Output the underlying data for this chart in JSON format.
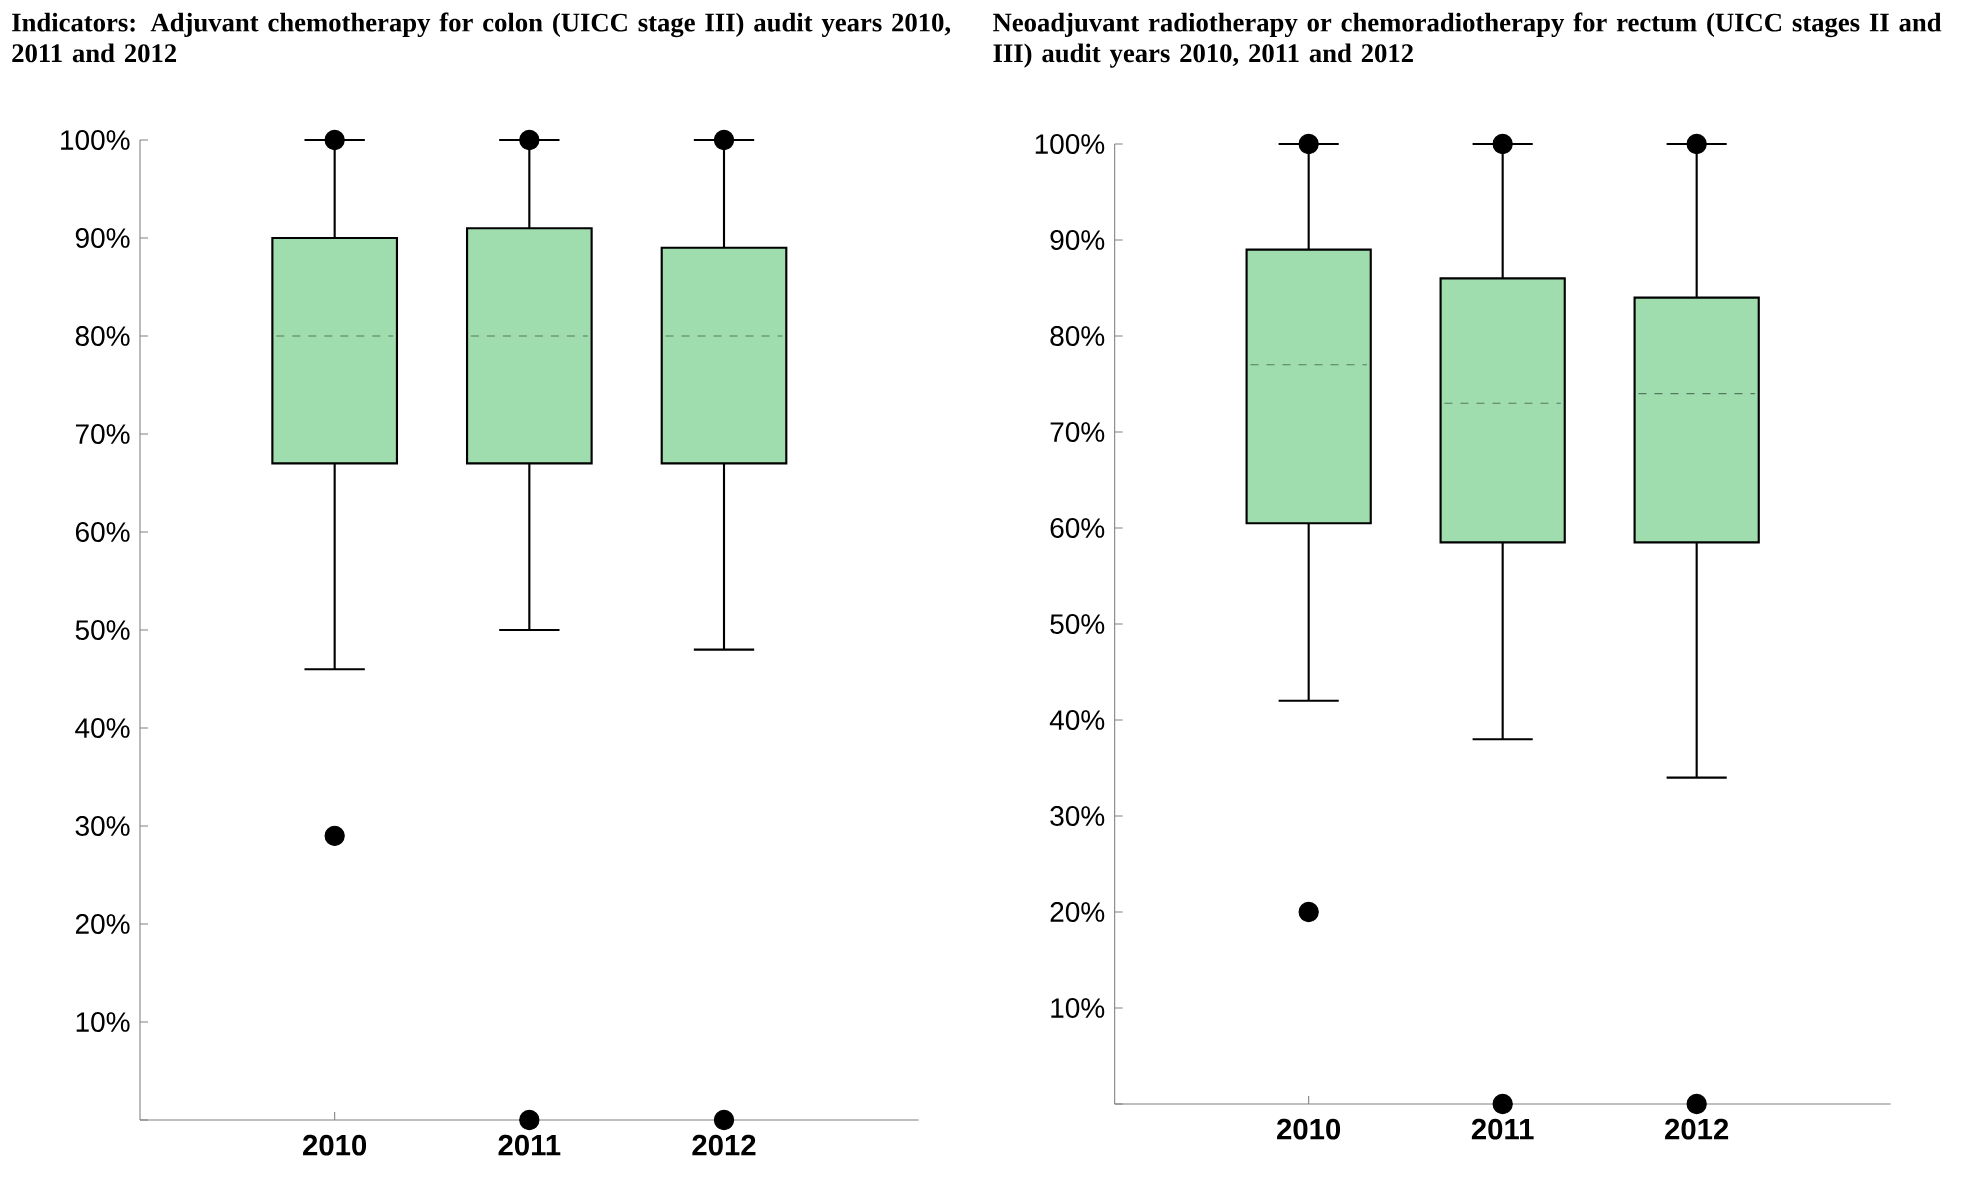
{
  "chart_data": [
    {
      "type": "box",
      "title": "Indicators: Adjuvant chemotherapy for colon (UICC stage III) audit years 2010, 2011 and 2012",
      "categories": [
        "2010",
        "2011",
        "2012"
      ],
      "color": "#9fdcae",
      "ylim": [
        0,
        100
      ],
      "yticks": [
        {
          "value": 0,
          "label": null
        },
        {
          "value": 10,
          "label": "10%"
        },
        {
          "value": 20,
          "label": "20%"
        },
        {
          "value": 30,
          "label": "30%"
        },
        {
          "value": 40,
          "label": "40%"
        },
        {
          "value": 50,
          "label": "50%"
        },
        {
          "value": 60,
          "label": "60%"
        },
        {
          "value": 70,
          "label": "70%"
        },
        {
          "value": 80,
          "label": "80%"
        },
        {
          "value": 90,
          "label": "90%"
        },
        {
          "value": 100,
          "label": "100%"
        }
      ],
      "boxes": [
        {
          "low": 46,
          "q1": 67,
          "median": 80,
          "q3": 90,
          "high": 100,
          "outliers": [
            29,
            100
          ]
        },
        {
          "low": 50,
          "q1": 67,
          "median": 80,
          "q3": 91,
          "high": 100,
          "outliers": [
            0,
            100
          ]
        },
        {
          "low": 48,
          "q1": 67,
          "median": 80,
          "q3": 89,
          "high": 100,
          "outliers": [
            0,
            100
          ]
        }
      ]
    },
    {
      "type": "box",
      "title": "Neoadjuvant radiotherapy or chemoradiotherapy for rectum (UICC stages II and III) audit years 2010, 2011 and 2012",
      "categories": [
        "2010",
        "2011",
        "2012"
      ],
      "color": "#9fdcae",
      "ylim": [
        0,
        100
      ],
      "yticks": [
        {
          "value": 0,
          "label": null
        },
        {
          "value": 10,
          "label": "10%"
        },
        {
          "value": 20,
          "label": "20%"
        },
        {
          "value": 30,
          "label": "30%"
        },
        {
          "value": 40,
          "label": "40%"
        },
        {
          "value": 50,
          "label": "50%"
        },
        {
          "value": 60,
          "label": "60%"
        },
        {
          "value": 70,
          "label": "70%"
        },
        {
          "value": 80,
          "label": "80%"
        },
        {
          "value": 90,
          "label": "90%"
        },
        {
          "value": 100,
          "label": "100%"
        }
      ],
      "boxes": [
        {
          "low": 42,
          "q1": 60.5,
          "median": 77,
          "q3": 89,
          "high": 100,
          "outliers": [
            20,
            100
          ]
        },
        {
          "low": 38,
          "q1": 58.5,
          "median": 73,
          "q3": 86,
          "high": 100,
          "outliers": [
            0,
            100
          ]
        },
        {
          "low": 34,
          "q1": 58.5,
          "median": 74,
          "q3": 84,
          "high": 100,
          "outliers": [
            0,
            100
          ]
        }
      ]
    }
  ]
}
